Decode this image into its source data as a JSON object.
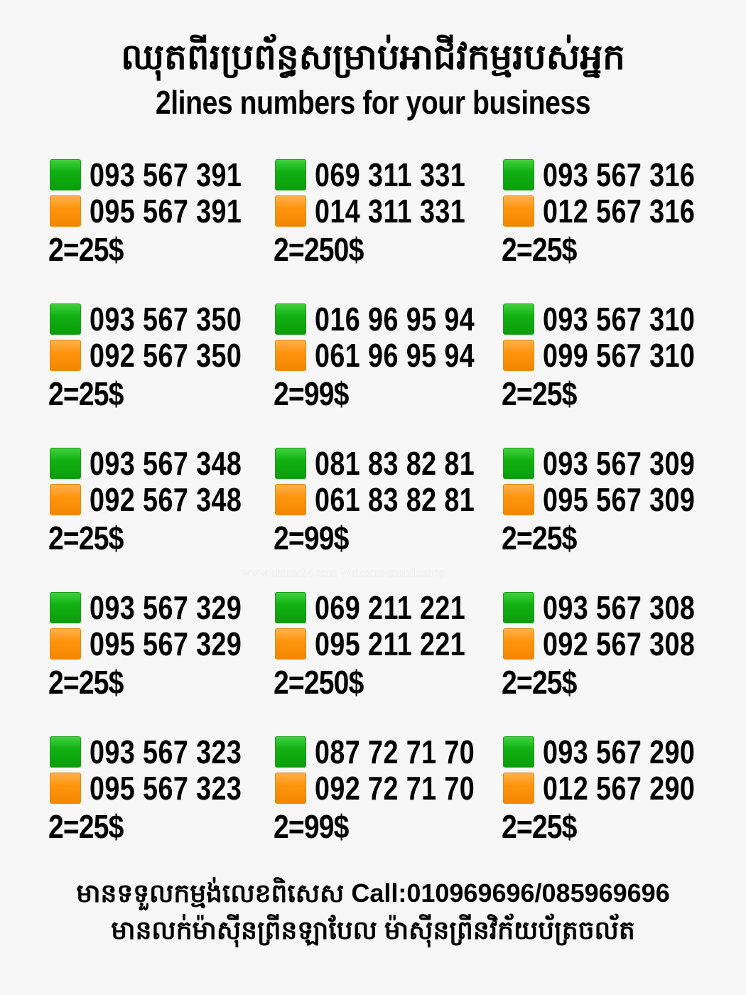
{
  "header": {
    "title_km": "ឈុតពីរប្រព័ន្ធសម្រាប់អាជីវកម្មរបស់អ្នក",
    "title_en": "2lines numbers for your business"
  },
  "colors": {
    "green": "#11b011",
    "orange": "#ff950f",
    "background": "#f7f7f7"
  },
  "icons": {
    "line1": "green-square-icon",
    "line2": "orange-square-icon"
  },
  "offers": [
    {
      "line1": "093 567 391",
      "line2": "095 567 391",
      "price": "2=25$"
    },
    {
      "line1": "069 311 331",
      "line2": "014 311 331",
      "price": "2=250$"
    },
    {
      "line1": "093 567 316",
      "line2": "012 567 316",
      "price": "2=25$"
    },
    {
      "line1": "093 567 350",
      "line2": "092 567 350",
      "price": "2=25$"
    },
    {
      "line1": "016 96 95 94",
      "line2": "061 96 95 94",
      "price": "2=99$"
    },
    {
      "line1": "093 567 310",
      "line2": "099 567 310",
      "price": "2=25$"
    },
    {
      "line1": "093 567 348",
      "line2": "092 567 348",
      "price": "2=25$"
    },
    {
      "line1": "081 83 82 81",
      "line2": "061 83 82 81",
      "price": "2=99$"
    },
    {
      "line1": "093 567 309",
      "line2": "095 567 309",
      "price": "2=25$"
    },
    {
      "line1": "093 567 329",
      "line2": "095 567 329",
      "price": "2=25$"
    },
    {
      "line1": "069 211 221",
      "line2": "095 211 221",
      "price": "2=250$"
    },
    {
      "line1": "093 567 308",
      "line2": "092 567 308",
      "price": "2=25$"
    },
    {
      "line1": "093 567 323",
      "line2": "095 567 323",
      "price": "2=25$"
    },
    {
      "line1": "087 72 71 70",
      "line2": "092 72 71 70",
      "price": "2=99$"
    },
    {
      "line1": "093 567 290",
      "line2": "012 567 290",
      "price": "2=25$"
    }
  ],
  "watermark": "www.khmer24.com Welcome-mobileshop",
  "footer": {
    "line1": "មានទទួលកម្មង់លេខពិសេស Call:010969696/085969696",
    "line2": "មានលក់ម៉ាស៊ីនព្រីនឡាបែល ម៉ាស៊ីនព្រីនវិក័យប័ត្រចល័ត"
  }
}
